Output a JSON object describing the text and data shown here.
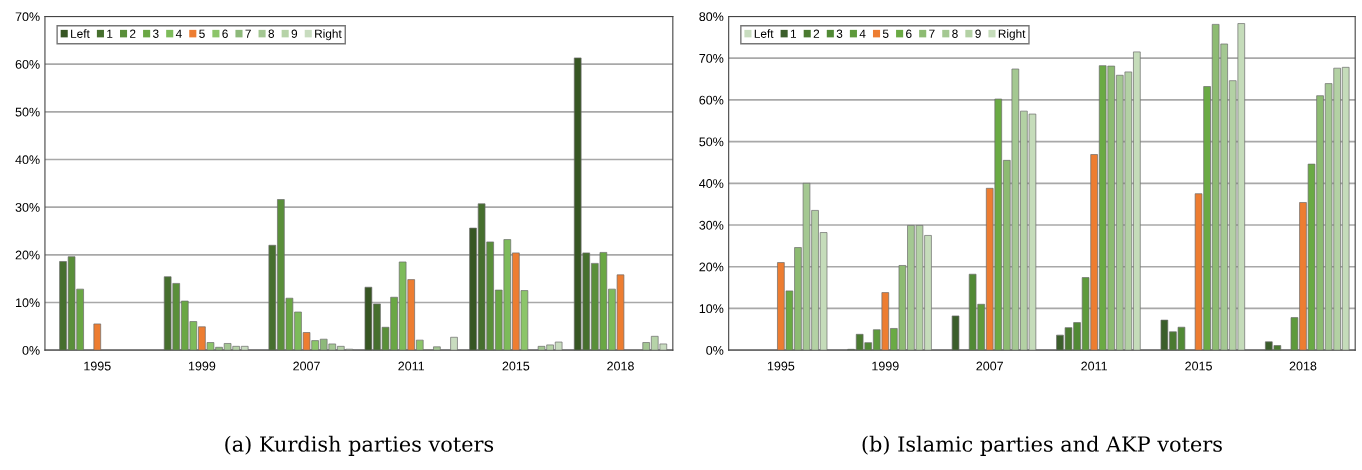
{
  "chart_data": [
    {
      "type": "bar",
      "title": "(a) Kurdish parties voters",
      "categories": [
        "1995",
        "1999",
        "2007",
        "2011",
        "2015",
        "2018"
      ],
      "ylim": [
        0,
        70
      ],
      "yticks": [
        {
          "value": 0,
          "label": "0%"
        },
        {
          "value": 10,
          "label": "10%"
        },
        {
          "value": 20,
          "label": "20%"
        },
        {
          "value": 30,
          "label": "30%"
        },
        {
          "value": 40,
          "label": "40%"
        },
        {
          "value": 50,
          "label": "50%"
        },
        {
          "value": 60,
          "label": "60%"
        },
        {
          "value": 70,
          "label": "70%"
        }
      ],
      "grid": "y",
      "legend": "top left",
      "series": [
        {
          "name": "Left",
          "color": "#375623",
          "values": [
            null,
            null,
            null,
            13.2,
            25.6,
            61.3
          ]
        },
        {
          "name": "1",
          "color": "#466f2e",
          "values": [
            18.6,
            15.4,
            22.0,
            9.7,
            30.7,
            20.4
          ]
        },
        {
          "name": "2",
          "color": "#5a8f3a",
          "values": [
            19.6,
            14.0,
            31.6,
            4.8,
            22.7,
            18.2
          ]
        },
        {
          "name": "3",
          "color": "#6aa744",
          "values": [
            12.8,
            10.3,
            10.9,
            11.1,
            12.6,
            20.5
          ]
        },
        {
          "name": "4",
          "color": "#7dbb5a",
          "values": [
            null,
            6.0,
            8.0,
            18.5,
            23.2,
            12.8
          ]
        },
        {
          "name": "5",
          "color": "#ed7d31",
          "values": [
            5.5,
            4.9,
            3.7,
            14.8,
            20.4,
            15.8
          ]
        },
        {
          "name": "6",
          "color": "#8cc56a",
          "values": [
            null,
            1.6,
            2.0,
            2.1,
            12.5,
            null
          ]
        },
        {
          "name": "7",
          "color": "#8db97a",
          "values": [
            null,
            0.6,
            2.3,
            null,
            null,
            null
          ]
        },
        {
          "name": "8",
          "color": "#a3c792",
          "values": [
            null,
            1.4,
            1.3,
            0.7,
            0.8,
            1.6
          ]
        },
        {
          "name": "9",
          "color": "#b6d3a8",
          "values": [
            null,
            0.8,
            0.8,
            null,
            1.1,
            2.9
          ]
        },
        {
          "name": "Right",
          "color": "#c8dcbf",
          "values": [
            null,
            0.8,
            0.2,
            2.7,
            1.7,
            1.3
          ]
        }
      ]
    },
    {
      "type": "bar",
      "title": "(b) Islamic parties and AKP voters",
      "categories": [
        "1995",
        "1999",
        "2007",
        "2011",
        "2015",
        "2018"
      ],
      "ylim": [
        0,
        80
      ],
      "yticks": [
        {
          "value": 0,
          "label": "0%"
        },
        {
          "value": 10,
          "label": "10%"
        },
        {
          "value": 20,
          "label": "20%"
        },
        {
          "value": 30,
          "label": "30%"
        },
        {
          "value": 40,
          "label": "40%"
        },
        {
          "value": 50,
          "label": "50%"
        },
        {
          "value": 60,
          "label": "60%"
        },
        {
          "value": 70,
          "label": "70%"
        },
        {
          "value": 80,
          "label": "80%"
        }
      ],
      "grid": "y",
      "legend": "top left",
      "series": [
        {
          "name": "Left",
          "color": "#c8dcbf",
          "values": [
            null,
            null,
            null,
            null,
            null,
            null
          ]
        },
        {
          "name": "1",
          "color": "#3b5e2b",
          "values": [
            null,
            0.2,
            8.2,
            3.6,
            7.2,
            2.0
          ]
        },
        {
          "name": "2",
          "color": "#4a7a30",
          "values": [
            null,
            3.8,
            null,
            5.4,
            4.4,
            1.1
          ]
        },
        {
          "name": "3",
          "color": "#518a35",
          "values": [
            null,
            1.8,
            18.2,
            6.6,
            5.5,
            null
          ]
        },
        {
          "name": "4",
          "color": "#5e9a3c",
          "values": [
            null,
            4.9,
            11.0,
            17.4,
            null,
            7.8
          ]
        },
        {
          "name": "5",
          "color": "#ed7d31",
          "values": [
            21.0,
            13.8,
            38.8,
            46.9,
            37.5,
            35.4
          ]
        },
        {
          "name": "6",
          "color": "#6aaa44",
          "values": [
            14.2,
            5.2,
            60.2,
            68.2,
            63.2,
            44.6
          ]
        },
        {
          "name": "7",
          "color": "#8dbb72",
          "values": [
            24.6,
            20.3,
            45.5,
            68.1,
            78.1,
            61.0
          ]
        },
        {
          "name": "8",
          "color": "#a4c892",
          "values": [
            40.0,
            29.9,
            67.4,
            65.9,
            73.4,
            63.9
          ]
        },
        {
          "name": "9",
          "color": "#b3d1a4",
          "values": [
            33.5,
            29.9,
            57.3,
            66.7,
            64.6,
            67.6
          ]
        },
        {
          "name": "Right",
          "color": "#c5dcba",
          "values": [
            28.2,
            27.5,
            56.6,
            71.5,
            78.3,
            67.8
          ]
        }
      ]
    }
  ]
}
